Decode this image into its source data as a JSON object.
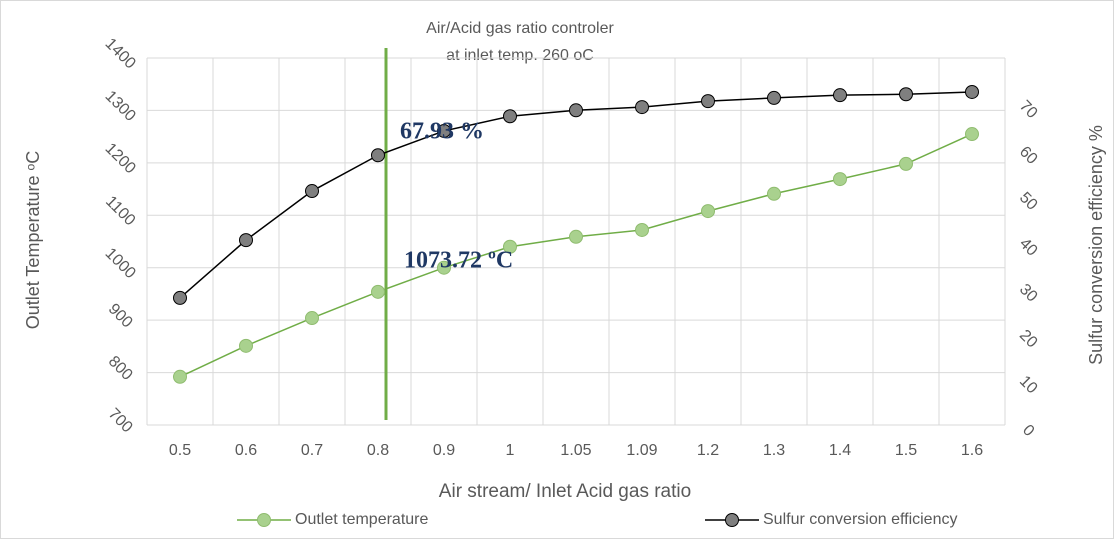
{
  "chart_data": {
    "type": "line",
    "title": "Air/Acid gas ratio controler",
    "subtitle": "at  inlet temp. 260 oC",
    "x_label": "Air stream/ Inlet Acid gas ratio",
    "y_label": "Outlet Temperature ᵒC",
    "y2_label": "Sulfur conversion efficiency %",
    "annotations": [
      "67.93  %",
      "1073.72 ºC"
    ],
    "categories": [
      "0.5",
      "0.6",
      "0.7",
      "0.8",
      "0.9",
      "1",
      "1.05",
      "1.09",
      "1.2",
      "1.3",
      "1.4",
      "1.5",
      "1.6"
    ],
    "series": [
      {
        "name": "Outlet temperature",
        "color": "#a9d18e",
        "stroke": "#70ad47",
        "values": [
          792,
          851,
          904,
          954,
          1000,
          1040,
          1059,
          1072,
          1108,
          1141,
          1169,
          1198,
          1255
        ]
      },
      {
        "name": "Sulfur conversion efficiency",
        "color": "#7f7f7f",
        "stroke": "#000000",
        "axis": "y2",
        "values": [
          27.7,
          40.3,
          51.0,
          58.8,
          64.1,
          67.3,
          68.6,
          69.3,
          70.6,
          71.3,
          71.9,
          72.1,
          72.6
        ]
      }
    ],
    "ylim": [
      700,
      1400
    ],
    "yticks": [
      700,
      800,
      900,
      1000,
      1100,
      1200,
      1300,
      1400
    ],
    "y2lim": [
      0,
      80
    ],
    "y2ticks": [
      0,
      10,
      20,
      30,
      40,
      50,
      60,
      70
    ],
    "grid": true,
    "legend": "bottom"
  }
}
